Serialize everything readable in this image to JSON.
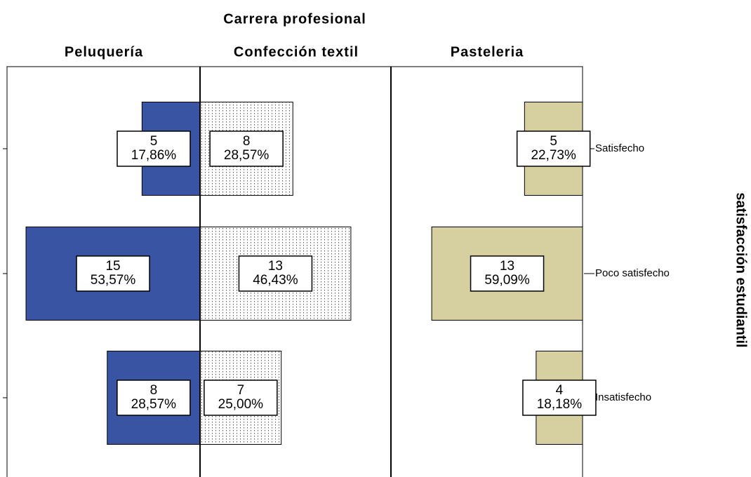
{
  "chart_data": {
    "type": "pyramid",
    "title": "Carrera profesional",
    "y_label": "satisfacción estudiantil",
    "categories": [
      "Satisfecho",
      "Poco satisfecho",
      "Insatisfecho"
    ],
    "series": [
      {
        "name": "Peluquería",
        "color": "#3a54a4",
        "direction": "left",
        "values": [
          5,
          15,
          8
        ],
        "percent_values": [
          17.86,
          53.57,
          28.57
        ],
        "percent_labels": [
          "17,86%",
          "53,57%",
          "28,57%"
        ]
      },
      {
        "name": "Confección textil",
        "color": "#ffffff",
        "pattern": "dots",
        "direction": "right",
        "values": [
          8,
          13,
          7
        ],
        "percent_values": [
          28.57,
          46.43,
          25.0
        ],
        "percent_labels": [
          "28,57%",
          "46,43%",
          "25,00%"
        ]
      },
      {
        "name": "Pasteleria",
        "color": "#d6cfa0",
        "direction": "left",
        "values": [
          5,
          13,
          4
        ],
        "percent_values": [
          22.73,
          59.09,
          18.18
        ],
        "percent_labels": [
          "22,73%",
          "59,09%",
          "18,18%"
        ]
      }
    ]
  }
}
